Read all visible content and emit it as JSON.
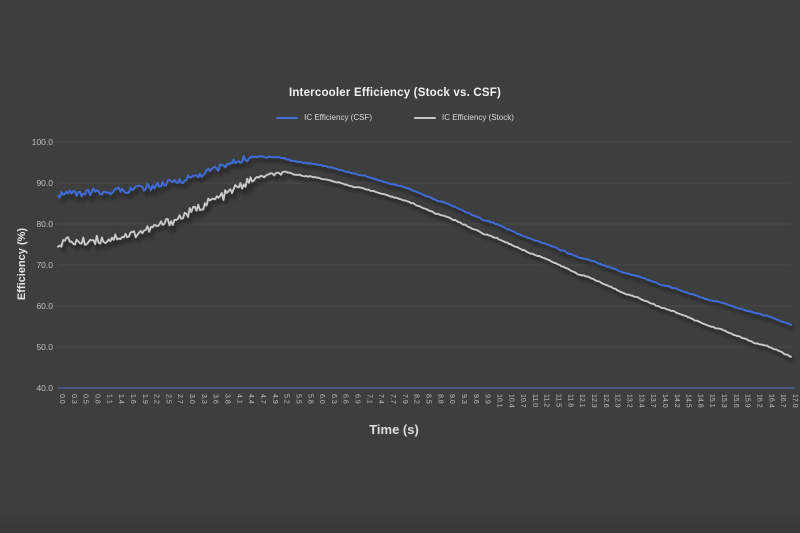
{
  "title": "Intercooler Efficiency (Stock vs. CSF)",
  "colors": {
    "background": "#3e3e3e",
    "gridline": "#4a4a4a",
    "axis_line": "#51619b",
    "tick_label": "#bfbfbf",
    "title_text": "#f2f2f2",
    "axis_title_text": "#e4e4e4",
    "legend_text": "#d9d9d9",
    "csf_line": "#3f6cd8",
    "stock_line": "#c9c9c9"
  },
  "legend": {
    "items": [
      {
        "label": "IC Efficiency (CSF)",
        "color": "#3f6cd8"
      },
      {
        "label": "IC Efficiency (Stock)",
        "color": "#c9c9c9"
      }
    ]
  },
  "chart_data": {
    "type": "line",
    "title": "Intercooler Efficiency (Stock vs. CSF)",
    "xlabel": "Time (s)",
    "ylabel": "Efficiency (%)",
    "ylim": [
      40,
      100
    ],
    "grid": "horizontal",
    "legend_position": "top-center",
    "y_ticks": [
      "100.0",
      "90.0",
      "80.0",
      "70.0",
      "60.0",
      "50.0",
      "40.0"
    ],
    "x": [
      0.0,
      0.3,
      0.5,
      0.8,
      1.1,
      1.4,
      1.6,
      1.9,
      2.2,
      2.5,
      2.7,
      3.0,
      3.3,
      3.6,
      3.8,
      4.1,
      4.4,
      4.7,
      4.9,
      5.2,
      5.5,
      5.8,
      6.0,
      6.3,
      6.6,
      6.9,
      7.1,
      7.4,
      7.7,
      7.9,
      8.2,
      8.5,
      8.8,
      9.0,
      9.3,
      9.6,
      9.9,
      10.1,
      10.4,
      10.7,
      11.0,
      11.2,
      11.5,
      11.8,
      12.1,
      12.3,
      12.6,
      12.9,
      13.2,
      13.4,
      13.7,
      14.0,
      14.2,
      14.5,
      14.8,
      15.1,
      15.3,
      15.6,
      15.9,
      16.2,
      16.4,
      16.7,
      17.0
    ],
    "series": [
      {
        "name": "IC Efficiency (Stock)",
        "color": "#c9c9c9",
        "noise_amplitude": 1.1,
        "noise_until_t": 4.5,
        "values": [
          75.4,
          75.9,
          75.5,
          76.2,
          76.1,
          76.9,
          77.3,
          78.1,
          79.0,
          80.2,
          81.1,
          82.6,
          84.1,
          85.7,
          86.9,
          88.6,
          90.1,
          91.4,
          92.0,
          92.4,
          92.1,
          91.7,
          91.3,
          90.6,
          89.9,
          89.1,
          88.6,
          87.7,
          86.8,
          86.1,
          85.0,
          83.8,
          82.5,
          81.7,
          80.3,
          79.0,
          77.6,
          76.7,
          75.4,
          74.1,
          72.8,
          71.9,
          70.5,
          69.2,
          67.8,
          66.9,
          65.6,
          64.3,
          63.0,
          62.1,
          60.9,
          59.6,
          58.8,
          57.6,
          56.4,
          55.2,
          54.4,
          53.2,
          52.1,
          50.9,
          50.2,
          49.0,
          47.6
        ]
      },
      {
        "name": "IC Efficiency (CSF)",
        "color": "#3f6cd8",
        "noise_amplitude": 0.85,
        "noise_until_t": 4.5,
        "values": [
          87.2,
          87.6,
          87.3,
          87.8,
          87.7,
          88.2,
          88.4,
          88.8,
          89.1,
          89.7,
          90.3,
          91.2,
          92.0,
          93.2,
          94.1,
          95.2,
          96.0,
          96.4,
          96.5,
          96.1,
          95.3,
          94.9,
          94.5,
          93.8,
          93.1,
          92.3,
          91.7,
          90.8,
          89.9,
          89.3,
          88.2,
          87.0,
          85.8,
          84.9,
          83.6,
          82.3,
          81.0,
          80.1,
          78.8,
          77.5,
          76.3,
          75.4,
          74.3,
          73.1,
          71.9,
          71.2,
          70.1,
          69.1,
          68.0,
          67.3,
          66.3,
          65.2,
          64.5,
          63.5,
          62.5,
          61.5,
          60.9,
          60.0,
          59.1,
          58.2,
          57.6,
          56.5,
          55.4
        ]
      }
    ]
  }
}
